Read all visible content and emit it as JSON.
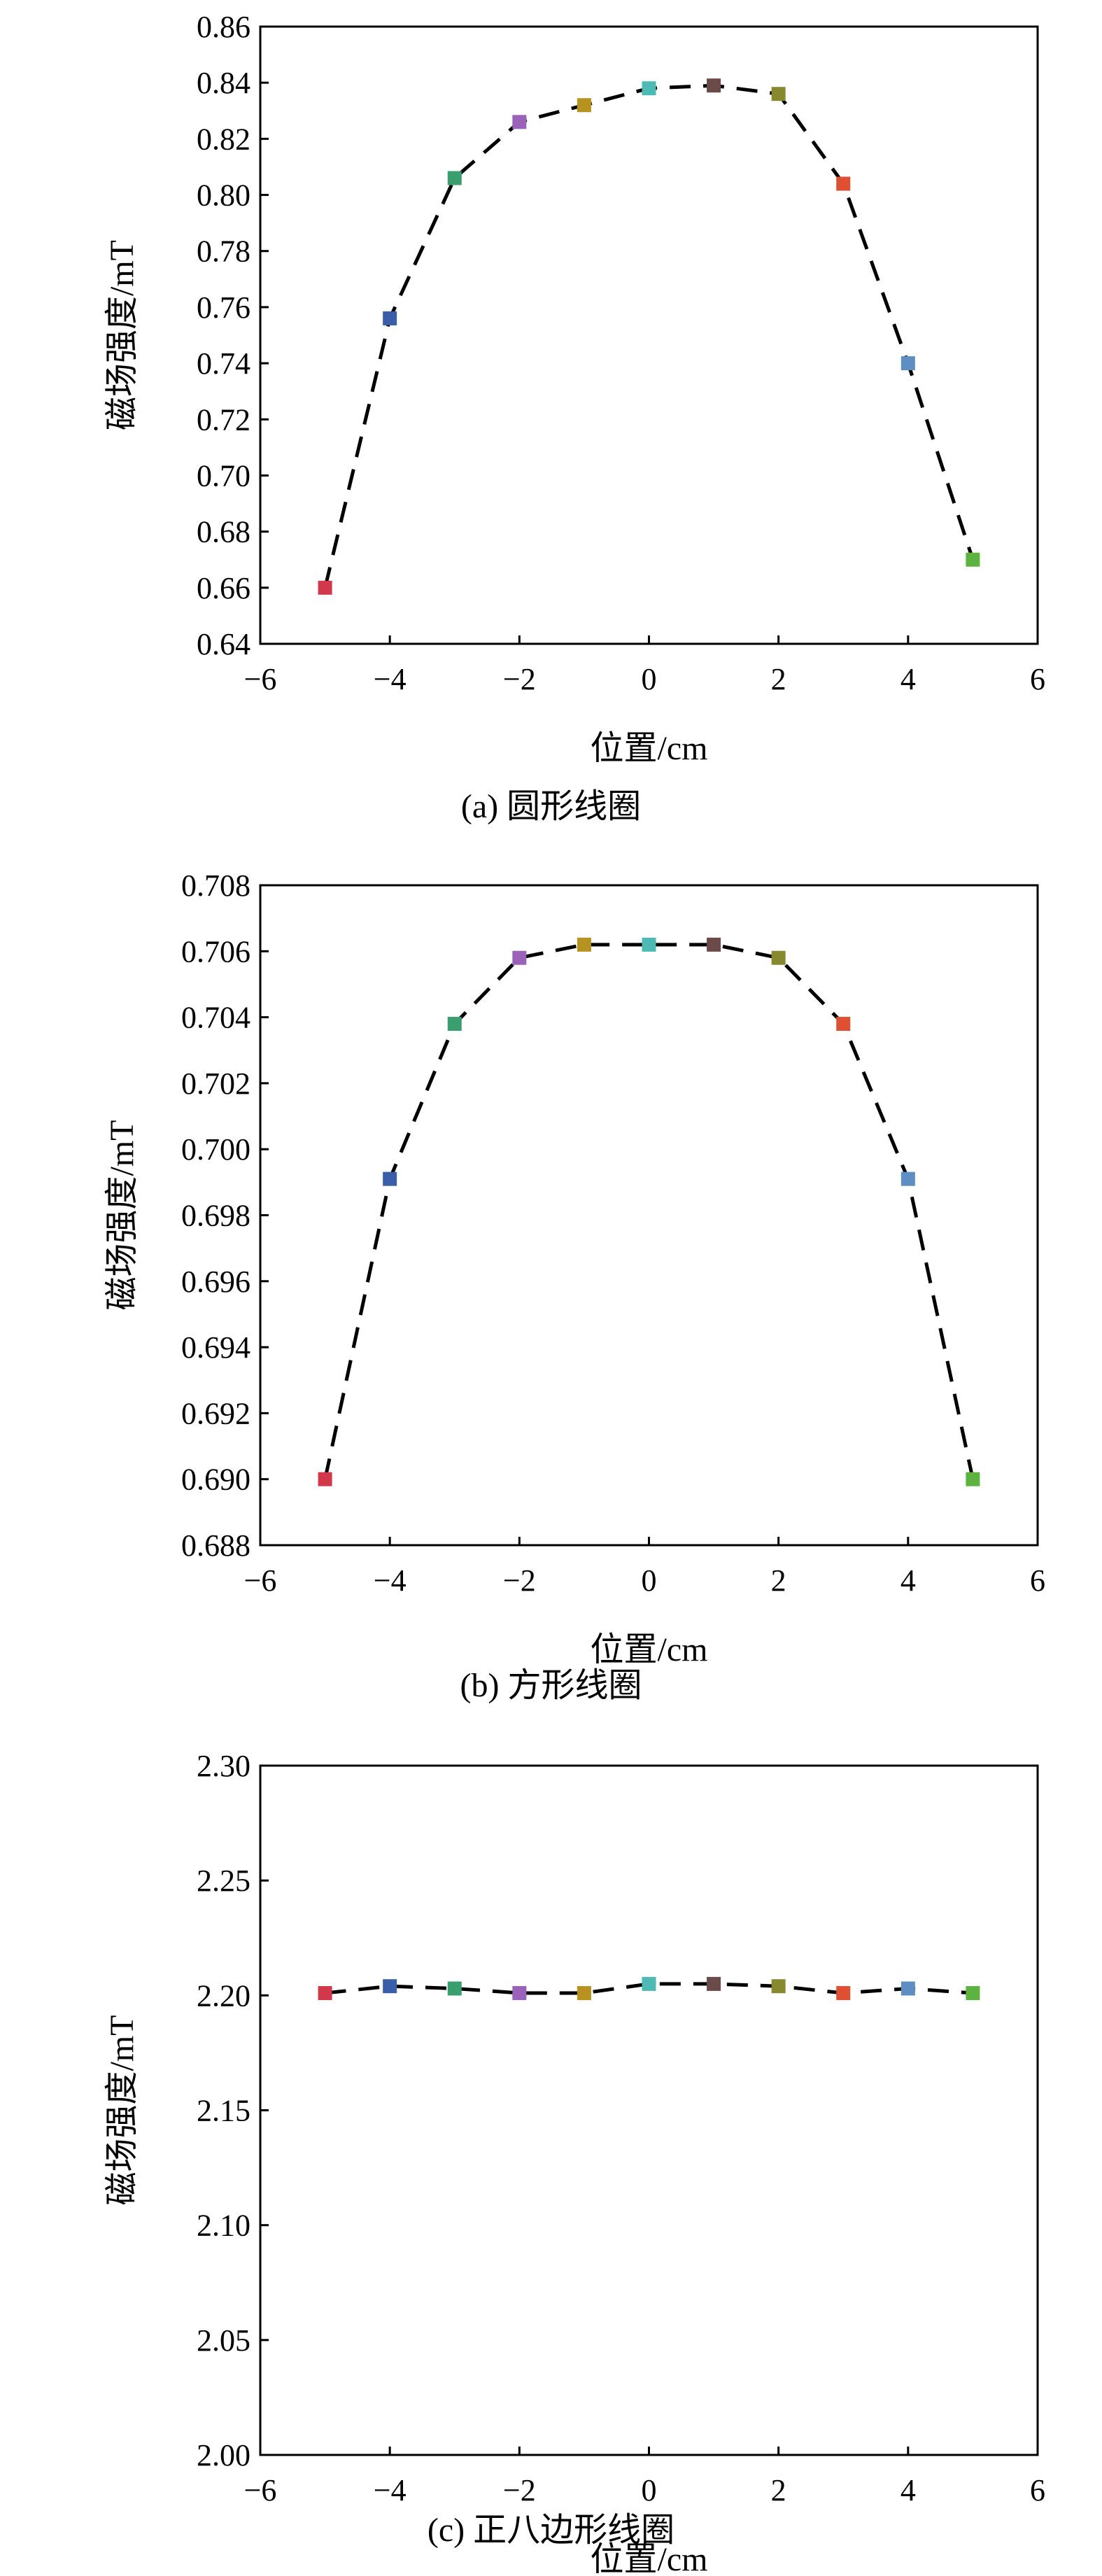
{
  "chart_data": [
    {
      "type": "scatter",
      "caption": "(a) 圆形线圈",
      "xlabel": "位置/cm",
      "ylabel": "磁场强度/mT",
      "xlim": [
        -6,
        6
      ],
      "ylim": [
        0.64,
        0.86
      ],
      "xticks": [
        "−6",
        "−4",
        "−2",
        "0",
        "2",
        "4",
        "6"
      ],
      "yticks": [
        "0.64",
        "0.66",
        "0.68",
        "0.70",
        "0.72",
        "0.74",
        "0.76",
        "0.78",
        "0.80",
        "0.82",
        "0.84",
        "0.86"
      ],
      "x": [
        -5,
        -4,
        -3,
        -2,
        -1,
        0,
        1,
        2,
        3,
        4,
        5
      ],
      "values": [
        0.66,
        0.756,
        0.806,
        0.826,
        0.832,
        0.838,
        0.839,
        0.836,
        0.804,
        0.74,
        0.67
      ],
      "line_style": "dashed",
      "grid": false
    },
    {
      "type": "scatter",
      "caption": "(b) 方形线圈",
      "xlabel": "位置/cm",
      "ylabel": "磁场强度/mT",
      "xlim": [
        -6,
        6
      ],
      "ylim": [
        0.688,
        0.708
      ],
      "xticks": [
        "−6",
        "−4",
        "−2",
        "0",
        "2",
        "4",
        "6"
      ],
      "yticks": [
        "0.688",
        "0.690",
        "0.692",
        "0.694",
        "0.696",
        "0.698",
        "0.700",
        "0.702",
        "0.704",
        "0.706",
        "0.708"
      ],
      "x": [
        -5,
        -4,
        -3,
        -2,
        -1,
        0,
        1,
        2,
        3,
        4,
        5
      ],
      "values": [
        0.69,
        0.6991,
        0.7038,
        0.7058,
        0.7062,
        0.7062,
        0.7062,
        0.7058,
        0.7038,
        0.6991,
        0.69
      ],
      "line_style": "dashed",
      "grid": false
    },
    {
      "type": "scatter",
      "caption": "(c) 正八边形线圈",
      "xlabel": "位置/cm",
      "ylabel": "磁场强度/mT",
      "xlim": [
        -6,
        6
      ],
      "ylim": [
        2.0,
        2.3
      ],
      "xticks": [
        "−6",
        "−4",
        "−2",
        "0",
        "2",
        "4",
        "6"
      ],
      "yticks": [
        "2.00",
        "2.05",
        "2.10",
        "2.15",
        "2.20",
        "2.25",
        "2.30"
      ],
      "x": [
        -5,
        -4,
        -3,
        -2,
        -1,
        0,
        1,
        2,
        3,
        4,
        5
      ],
      "values": [
        2.201,
        2.204,
        2.203,
        2.201,
        2.201,
        2.205,
        2.205,
        2.204,
        2.201,
        2.203,
        2.201
      ],
      "line_style": "dashed",
      "grid": false
    }
  ],
  "marker_colors": [
    "#d1384a",
    "#3a5ea8",
    "#3a9e6e",
    "#9a62b8",
    "#b8921f",
    "#4dbab5",
    "#6b4a4a",
    "#86892e",
    "#df4f32",
    "#5f8ec2",
    "#5db340"
  ]
}
